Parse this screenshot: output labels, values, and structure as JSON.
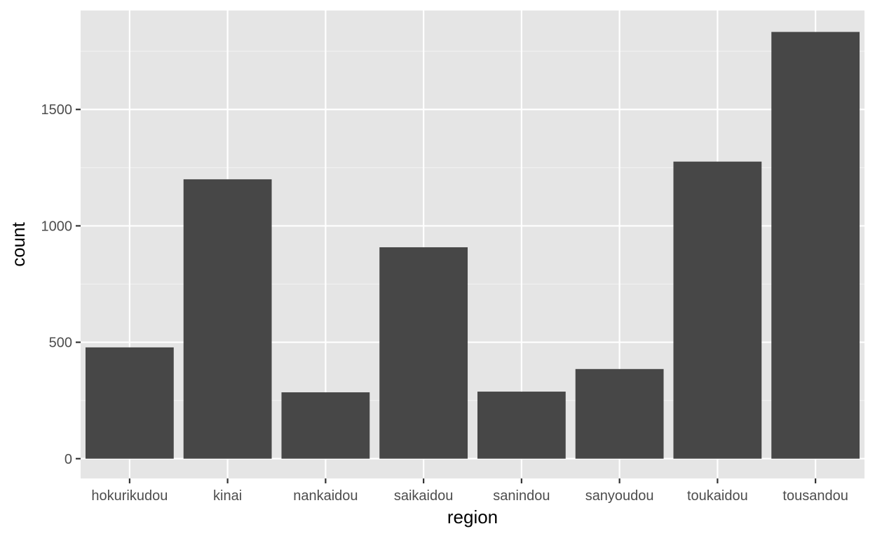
{
  "chart_data": {
    "type": "bar",
    "title": "",
    "xlabel": "region",
    "ylabel": "count",
    "categories": [
      "hokurikudou",
      "kinai",
      "nankaidou",
      "saikaidou",
      "sanindou",
      "sanyoudou",
      "toukaidou",
      "tousandou"
    ],
    "values": [
      478,
      1200,
      285,
      908,
      288,
      385,
      1276,
      1833
    ],
    "ylim": [
      -85,
      1925
    ],
    "yticks": [
      0,
      500,
      1000,
      1500
    ],
    "ytick_labels": [
      "0",
      "500",
      "1000",
      "1500"
    ],
    "grid": true,
    "colors": {
      "panel": "#e5e5e5",
      "grid_major": "#ffffff",
      "grid_minor": "#f2f2f2",
      "bar": "#474747",
      "tick": "#333333"
    }
  }
}
